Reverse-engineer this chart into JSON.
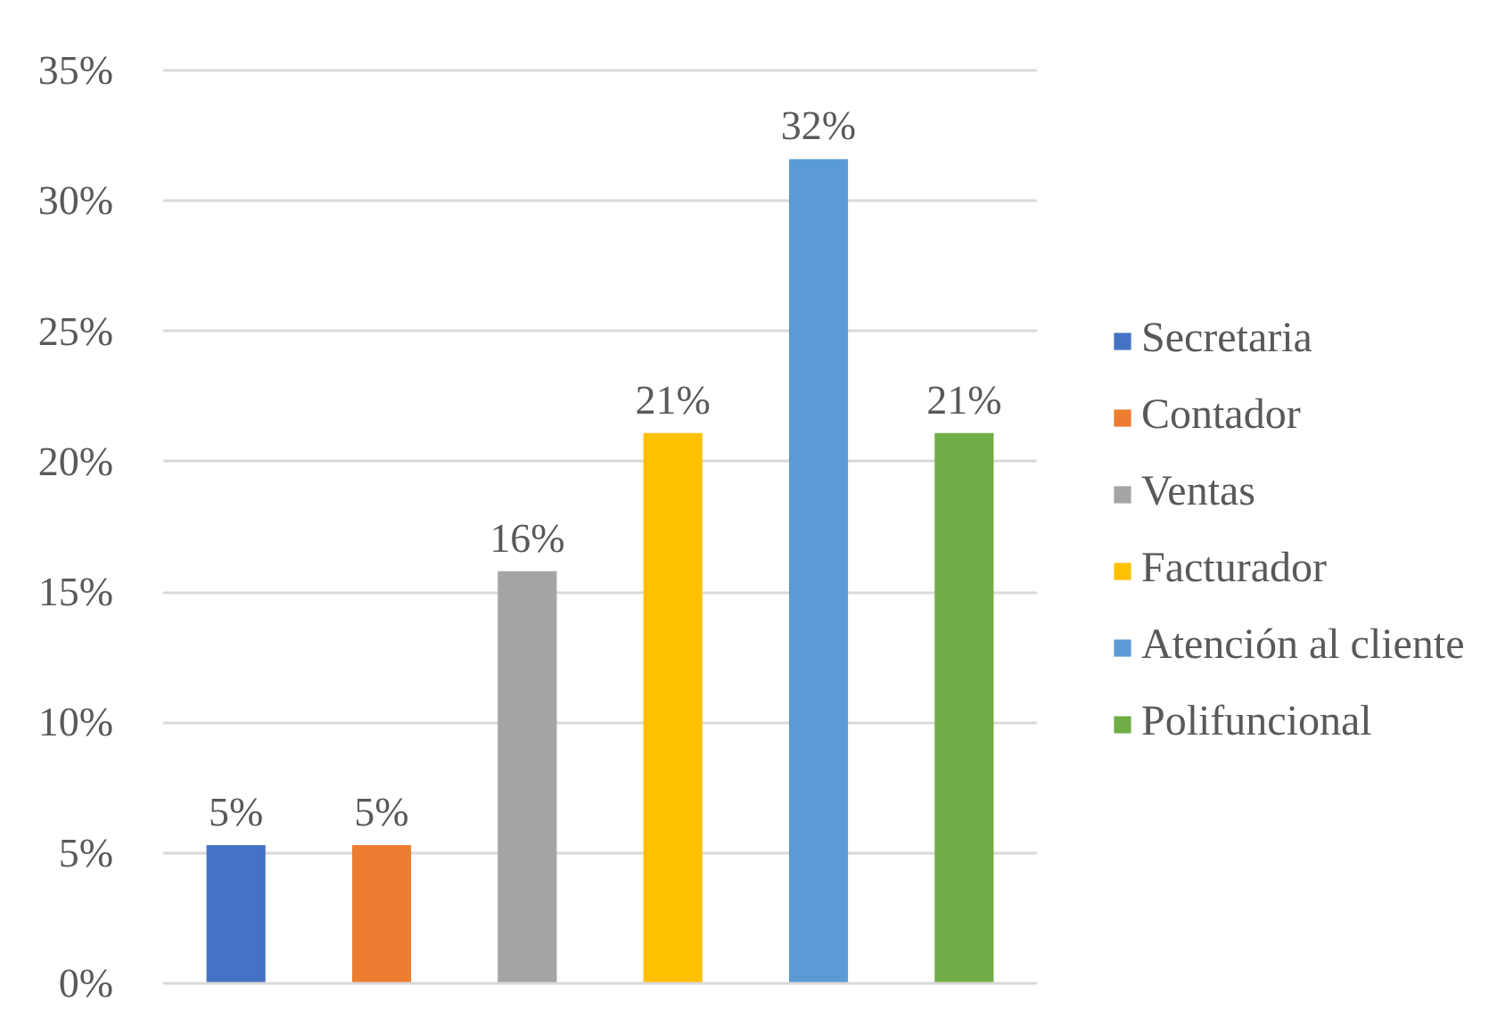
{
  "chart_data": {
    "type": "bar",
    "categories": [
      null,
      null,
      null,
      null,
      null,
      null
    ],
    "series": [
      {
        "name": "Secretaria",
        "color": "#4472c4",
        "values": [
          5.3,
          null,
          null,
          null,
          null,
          null
        ],
        "value_labels": [
          "5%",
          null,
          null,
          null,
          null,
          null
        ]
      },
      {
        "name": "Contador",
        "color": "#ed7d31",
        "values": [
          null,
          5.3,
          null,
          null,
          null,
          null
        ],
        "value_labels": [
          null,
          "5%",
          null,
          null,
          null,
          null
        ]
      },
      {
        "name": "Ventas",
        "color": "#a5a5a5",
        "values": [
          null,
          null,
          15.8,
          null,
          null,
          null
        ],
        "value_labels": [
          null,
          null,
          "16%",
          null,
          null,
          null
        ]
      },
      {
        "name": "Facturador",
        "color": "#ffc000",
        "values": [
          null,
          null,
          null,
          21.1,
          null,
          null
        ],
        "value_labels": [
          null,
          null,
          null,
          "21%",
          null,
          null
        ]
      },
      {
        "name": "Atención al cliente",
        "color": "#5b9bd5",
        "values": [
          null,
          null,
          null,
          null,
          31.6,
          null
        ],
        "value_labels": [
          null,
          null,
          null,
          null,
          "32%",
          null
        ]
      },
      {
        "name": "Polifuncional",
        "color": "#70ad47",
        "values": [
          null,
          null,
          null,
          null,
          null,
          21.1
        ],
        "value_labels": [
          null,
          null,
          null,
          null,
          null,
          "21%"
        ]
      }
    ],
    "ylim": [
      0,
      35
    ],
    "yticks": [
      {
        "value": 0,
        "label": "0%"
      },
      {
        "value": 5,
        "label": "5%"
      },
      {
        "value": 10,
        "label": "10%"
      },
      {
        "value": 15,
        "label": "15%"
      },
      {
        "value": 20,
        "label": "20%"
      },
      {
        "value": 25,
        "label": "25%"
      },
      {
        "value": 30,
        "label": "30%"
      },
      {
        "value": 35,
        "label": "35%"
      }
    ],
    "grid": "y",
    "legend": "right"
  }
}
